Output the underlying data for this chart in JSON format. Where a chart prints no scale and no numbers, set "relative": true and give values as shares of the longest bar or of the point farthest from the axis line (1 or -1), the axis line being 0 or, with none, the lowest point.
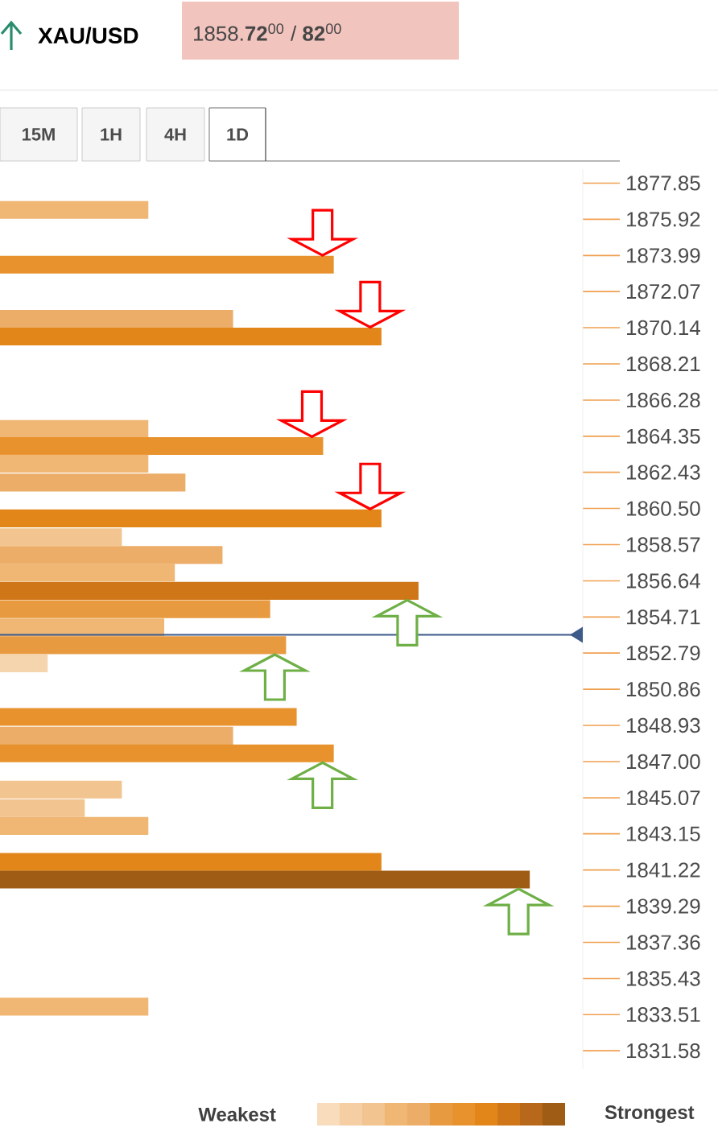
{
  "chart_data": {
    "type": "bar",
    "orientation": "horizontal",
    "relative": true,
    "title": "XAU/USD",
    "subtitle": "1858.**72**$^{00}$ / **82**$^{00}$",
    "x": [
      1876.42,
      1873.5,
      1870.61,
      1869.67,
      1864.74,
      1863.83,
      1862.89,
      1861.88,
      1859.97,
      1858.97,
      1858.02,
      1857.08,
      1856.11,
      1855.13,
      1854.16,
      1853.21,
      1852.24,
      1849.38,
      1848.38,
      1847.44,
      1845.51,
      1844.52,
      1843.57,
      1841.65,
      1840.71,
      1833.93
    ],
    "values": [
      0.28,
      0.63,
      0.44,
      0.72,
      0.28,
      0.61,
      0.28,
      0.35,
      0.72,
      0.23,
      0.42,
      0.33,
      0.79,
      0.51,
      0.31,
      0.54,
      0.09,
      0.56,
      0.44,
      0.63,
      0.23,
      0.16,
      0.28,
      0.72,
      1,
      0.28
    ],
    "colors": [
      "#efb674",
      "#e8922e",
      "#ecad68",
      "#e3861a",
      "#efb674",
      "#e8922e",
      "#efb674",
      "#ecad68",
      "#e3861a",
      "#f2c490",
      "#ecad68",
      "#efb674",
      "#cf7618",
      "#e89a40",
      "#efb674",
      "#e89a40",
      "#f5d5ae",
      "#e8922e",
      "#ecad68",
      "#e8922e",
      "#f2c490",
      "#f2c490",
      "#efb674",
      "#e3861a",
      "#9e5c14",
      "#efb674"
    ],
    "ylim": [
      1830.6,
      1878.6
    ],
    "yticks": [
      1877.85,
      1875.92,
      1873.99,
      1872.07,
      1870.14,
      1868.21,
      1866.28,
      1864.35,
      1862.43,
      {
        "value": 1860.5,
        "label": "1860.50"
      },
      1858.57,
      1856.64,
      1854.71,
      1852.79,
      1850.86,
      1848.93,
      {
        "value": 1847,
        "label": "1847.00"
      },
      1845.07,
      1843.15,
      1841.22,
      1839.29,
      1837.36,
      1835.43,
      1833.51,
      1831.58
    ],
    "ref_lines": [
      {
        "axis": "y",
        "value": 1853.76,
        "color": "#3d5a8a"
      }
    ],
    "annotations": [
      "15M",
      "1H",
      "4H",
      "1D",
      "Weakest",
      "Strongest"
    ]
  }
}
